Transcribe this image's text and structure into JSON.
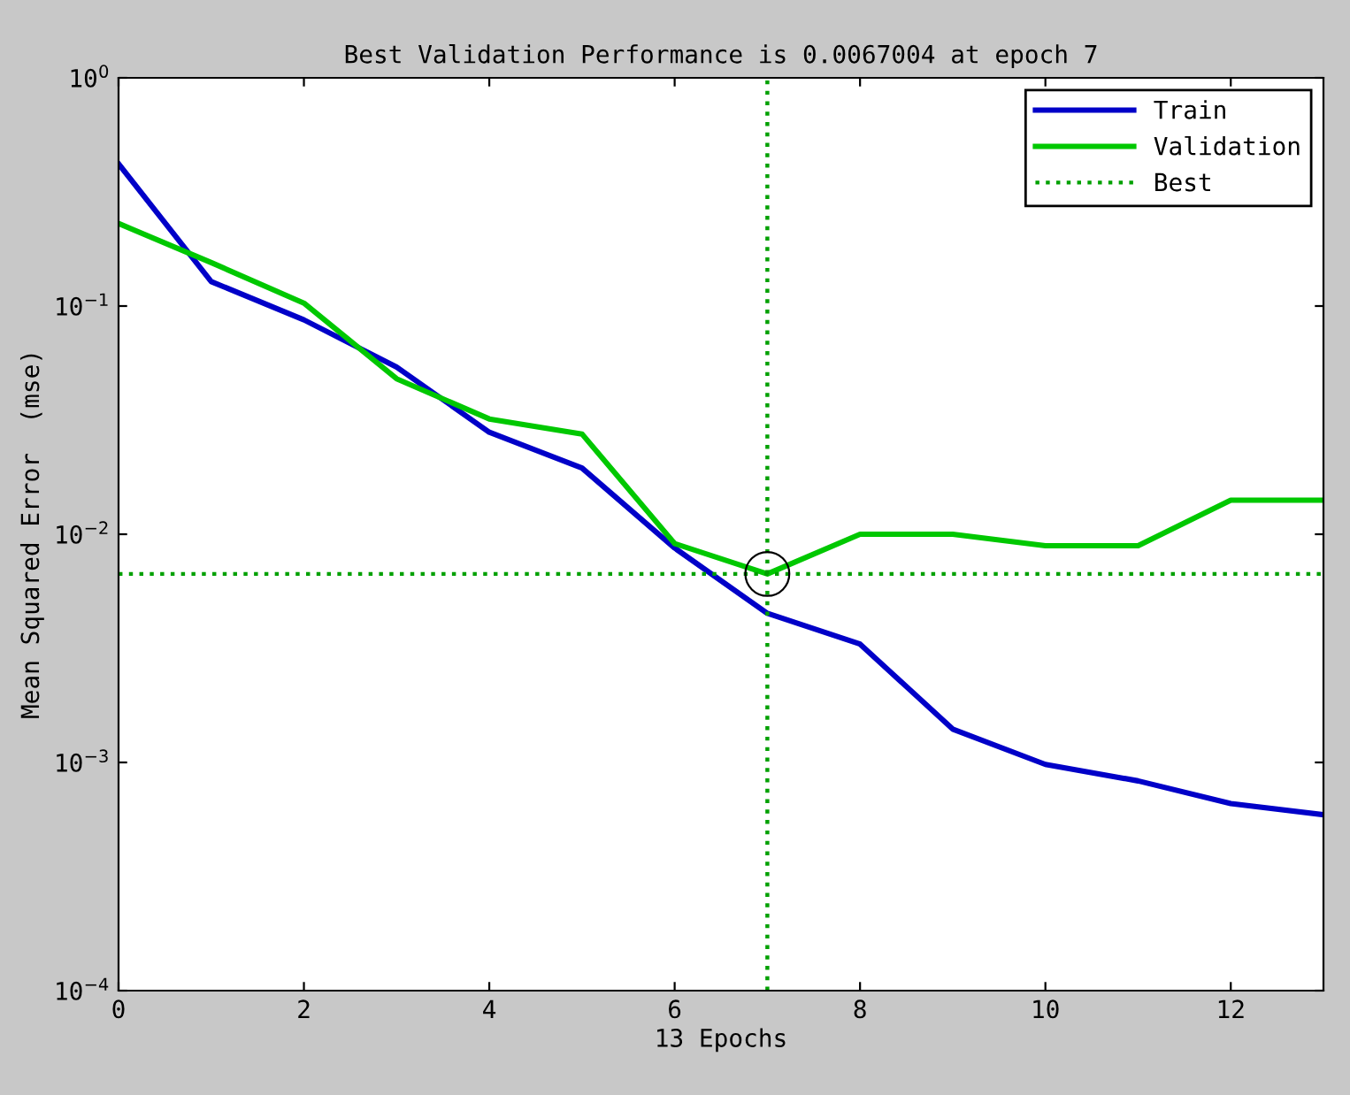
{
  "chart_data": {
    "type": "line",
    "title": "Best Validation Performance is 0.0067004 at epoch 7",
    "xlabel": "13 Epochs",
    "ylabel": "Mean Squared Error  (mse)",
    "x": [
      0,
      1,
      2,
      3,
      4,
      5,
      6,
      7,
      8,
      9,
      10,
      11,
      12,
      13
    ],
    "series": [
      {
        "name": "Train",
        "color": "#0000c8",
        "values": [
          0.42,
          0.128,
          0.087,
          0.054,
          0.028,
          0.0195,
          0.0087,
          0.0045,
          0.0033,
          0.0014,
          0.00098,
          0.00083,
          0.00066,
          0.00059
        ]
      },
      {
        "name": "Validation",
        "color": "#00c800",
        "values": [
          0.23,
          0.155,
          0.103,
          0.048,
          0.032,
          0.0275,
          0.0091,
          0.0067004,
          0.01,
          0.01,
          0.0089,
          0.0089,
          0.0141,
          0.0141
        ]
      },
      {
        "name": "Best",
        "type": "line",
        "line_style": "dotted",
        "color": "#00a000",
        "x": [
          0,
          13
        ],
        "values": [
          0.0067004,
          0.0067004
        ]
      },
      {
        "type": "scatter",
        "marker": "circle",
        "color": "#000000",
        "x": [
          7
        ],
        "values": [
          0.0067004
        ]
      }
    ],
    "ref_lines": [
      {
        "axis": "x",
        "value": 7,
        "color": "#00a000",
        "line_style": "dotted"
      }
    ],
    "log": "y",
    "xlim": [
      0,
      13
    ],
    "ylim": [
      0.0001,
      1
    ],
    "xticks": [
      0,
      2,
      4,
      6,
      8,
      10,
      12
    ],
    "yticks": [
      {
        "value": 0.0001,
        "label": "10$^{−4}$"
      },
      {
        "value": 0.001,
        "label": "10$^{−3}$"
      },
      {
        "value": 0.01,
        "label": "10$^{−2}$"
      },
      {
        "value": 0.1,
        "label": "10$^{−1}$"
      },
      {
        "value": 1,
        "label": "10$^{0}$"
      }
    ],
    "legend": "top right",
    "grid": false
  }
}
